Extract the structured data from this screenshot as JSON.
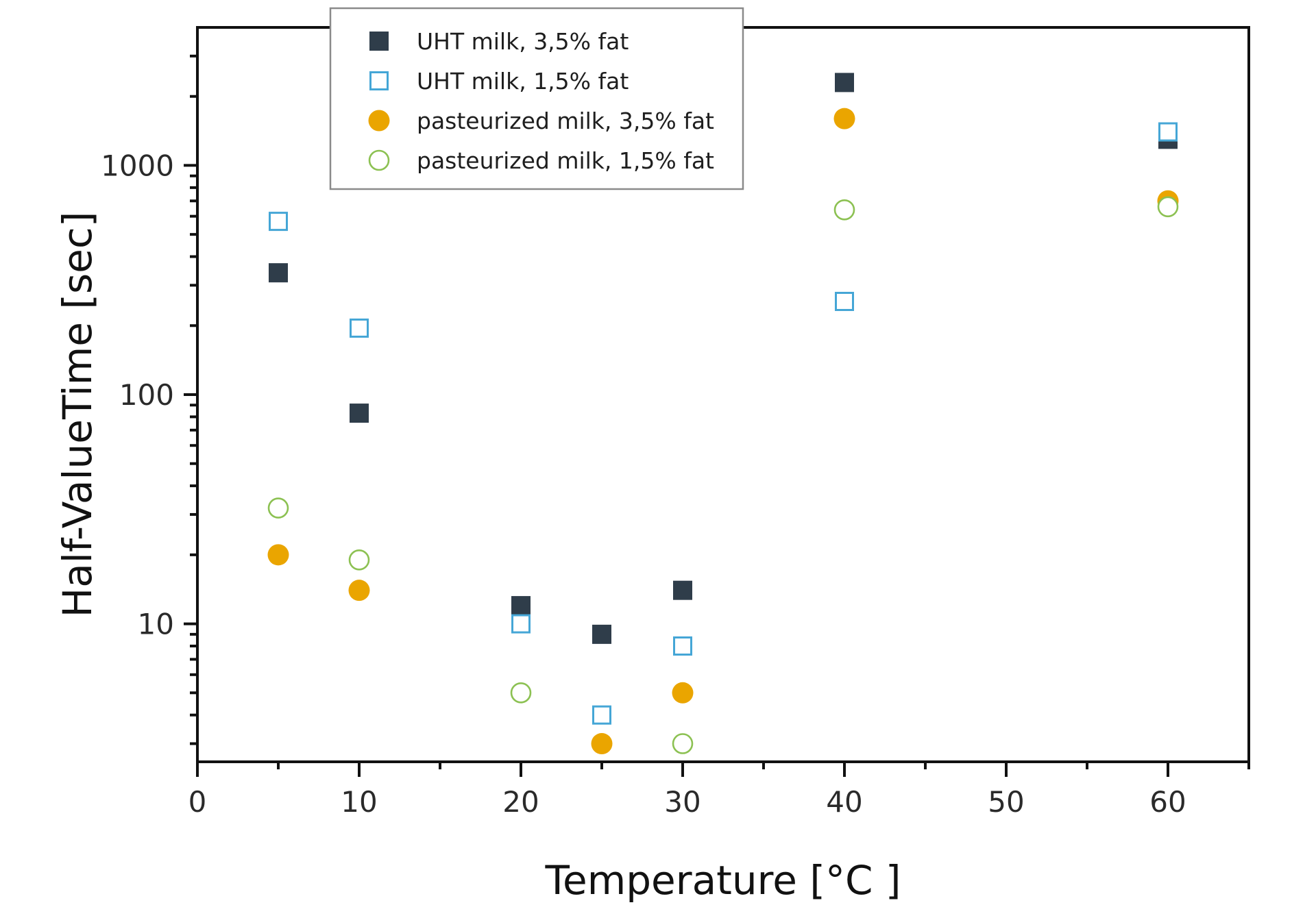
{
  "chart_data": {
    "type": "scatter",
    "title": "",
    "xlabel": "Temperature [°C ]",
    "ylabel": "Half-ValueTime [sec]",
    "xlim": [
      0,
      65
    ],
    "ylim": [
      2.5,
      4000
    ],
    "yscale": "log",
    "grid": false,
    "legend_position": "top-center",
    "x_ticks": [
      0,
      10,
      20,
      30,
      40,
      50,
      60
    ],
    "x_tick_labels": [
      "0",
      "10",
      "20",
      "30",
      "40",
      "50",
      "60"
    ],
    "x_minor_ticks": [
      5,
      15,
      25,
      35,
      45,
      55,
      65
    ],
    "y_ticks": [
      10,
      100,
      1000
    ],
    "y_tick_labels": [
      "10",
      "100",
      "1000"
    ],
    "series": [
      {
        "name": "UHT milk, 3,5% fat",
        "marker": "square-filled",
        "color": "#2f3d4a",
        "x": [
          5,
          10,
          20,
          25,
          30,
          40,
          60
        ],
        "y": [
          340,
          83,
          12,
          9,
          14,
          2300,
          1300
        ]
      },
      {
        "name": "UHT milk, 1,5% fat",
        "marker": "square-open",
        "color": "#45a6d6",
        "x": [
          5,
          10,
          20,
          25,
          30,
          40,
          60
        ],
        "y": [
          570,
          195,
          10,
          4,
          8,
          255,
          1400
        ]
      },
      {
        "name": "pasteurized milk, 3,5% fat",
        "marker": "circle-filled",
        "color": "#eaa500",
        "x": [
          5,
          10,
          25,
          30,
          40,
          60
        ],
        "y": [
          20,
          14,
          3,
          5,
          1600,
          700
        ]
      },
      {
        "name": "pasteurized milk, 1,5% fat",
        "marker": "circle-open",
        "color": "#8cc152",
        "x": [
          5,
          10,
          20,
          30,
          40,
          60
        ],
        "y": [
          32,
          19,
          5,
          3,
          640,
          660
        ]
      }
    ]
  }
}
